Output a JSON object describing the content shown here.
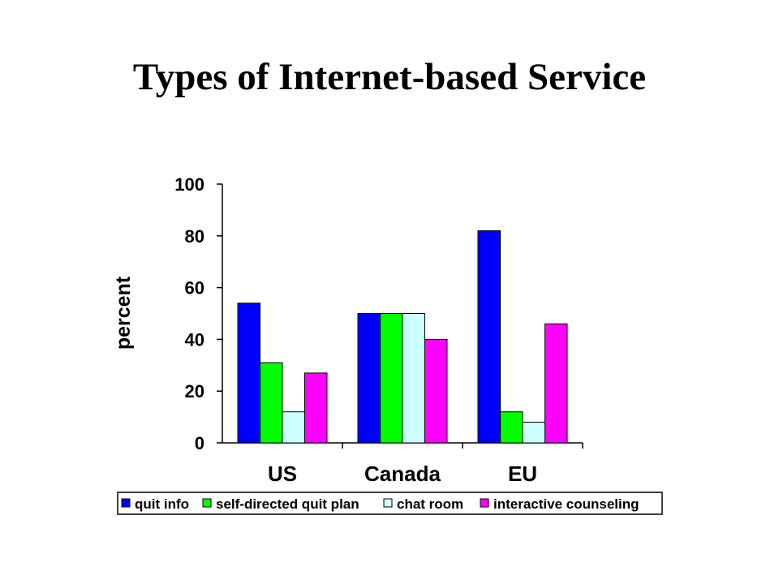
{
  "slide": {
    "title": "Types of Internet-based Service"
  },
  "chart_data": {
    "type": "bar",
    "title": "",
    "xlabel": "",
    "ylabel": "percent",
    "ylim": [
      0,
      100
    ],
    "yticks": [
      0,
      20,
      40,
      60,
      80,
      100
    ],
    "categories": [
      "US",
      "Canada",
      "EU"
    ],
    "series": [
      {
        "name": "quit info",
        "color": "#0000ff",
        "values": [
          54,
          50,
          82
        ]
      },
      {
        "name": "self-directed quit plan",
        "color": "#00ff00",
        "values": [
          31,
          50,
          12
        ]
      },
      {
        "name": "chat room",
        "color": "#ccffff",
        "values": [
          12,
          50,
          8
        ]
      },
      {
        "name": "interactive counseling",
        "color": "#ff00ff",
        "values": [
          27,
          40,
          46
        ]
      }
    ],
    "grid": false,
    "legend_position": "bottom"
  }
}
